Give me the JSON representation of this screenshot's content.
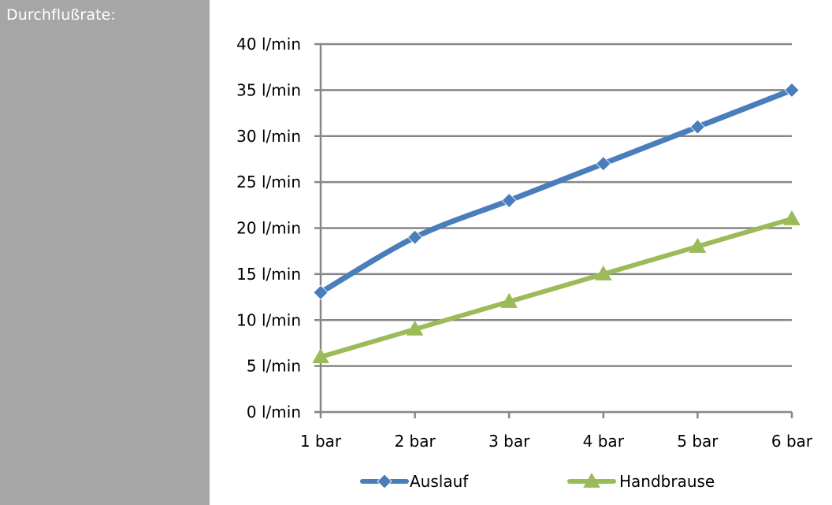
{
  "sidebar": {
    "label": "Durchflußrate:"
  },
  "colors": {
    "panel": "#a6a6a6",
    "grid": "#868686",
    "auslauf": "#4a7ebb",
    "handbrause": "#9bbb59"
  },
  "chart_data": {
    "type": "line",
    "title": "",
    "xlabel": "",
    "ylabel": "",
    "categories": [
      "1 bar",
      "2 bar",
      "3 bar",
      "4 bar",
      "5 bar",
      "6 bar"
    ],
    "y_ticks": [
      "0 l/min",
      "5 l/min",
      "10 l/min",
      "15 l/min",
      "20 l/min",
      "25 l/min",
      "30 l/min",
      "35 l/min",
      "40 l/min"
    ],
    "ylim": [
      0,
      40
    ],
    "grid": true,
    "legend_position": "bottom",
    "series": [
      {
        "name": "Auslauf",
        "marker": "diamond",
        "values": [
          13,
          19,
          23,
          27,
          31,
          35
        ]
      },
      {
        "name": "Handbrause",
        "marker": "triangle",
        "values": [
          6,
          9,
          12,
          15,
          18,
          21
        ]
      }
    ]
  }
}
